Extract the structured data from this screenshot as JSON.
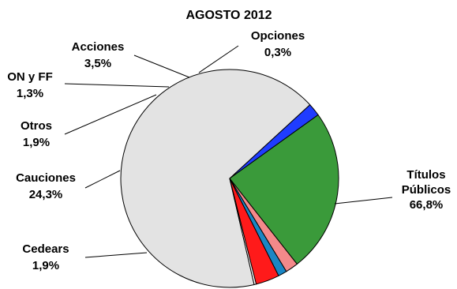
{
  "chart_data": {
    "type": "pie",
    "title": "AGOSTO 2012",
    "slices": [
      {
        "name": "Títulos Públicos",
        "label_lines": [
          "Títulos",
          "Públicos"
        ],
        "value": 66.8,
        "value_label": "66,8%",
        "color": "#e3e3e3"
      },
      {
        "name": "Cedears",
        "label_lines": [
          "Cedears"
        ],
        "value": 1.9,
        "value_label": "1,9%",
        "color": "#1f3cff"
      },
      {
        "name": "Cauciones",
        "label_lines": [
          "Cauciones"
        ],
        "value": 24.3,
        "value_label": "24,3%",
        "color": "#3a9a3a"
      },
      {
        "name": "Otros",
        "label_lines": [
          "Otros"
        ],
        "value": 1.9,
        "value_label": "1,9%",
        "color": "#f4898a"
      },
      {
        "name": "ON y FF",
        "label_lines": [
          "ON y FF"
        ],
        "value": 1.3,
        "value_label": "1,3%",
        "color": "#1a86c4"
      },
      {
        "name": "Acciones",
        "label_lines": [
          "Acciones"
        ],
        "value": 3.5,
        "value_label": "3,5%",
        "color": "#ff1a1a"
      },
      {
        "name": "Opciones",
        "label_lines": [
          "Opciones"
        ],
        "value": 0.3,
        "value_label": "0,3%",
        "color": "#ffffff"
      }
    ]
  }
}
